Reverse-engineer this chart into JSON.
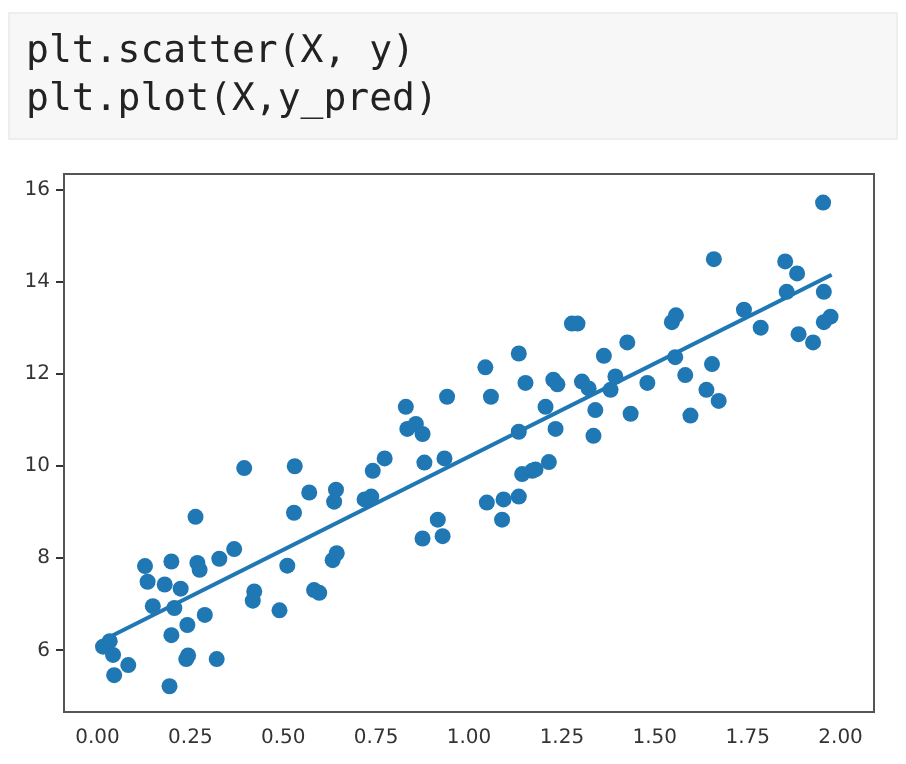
{
  "chart_data": {
    "type": "scatter",
    "annotations": [
      "plt.scatter(X, y)",
      "plt.plot(X,y_pred)"
    ],
    "xlim": [
      -0.09,
      2.09
    ],
    "ylim": [
      4.66,
      16.35
    ],
    "xticks": [
      {
        "value": 0,
        "label": "0.00"
      },
      {
        "value": 0.25,
        "label": "0.25"
      },
      {
        "value": 0.5,
        "label": "0.50"
      },
      {
        "value": 0.75,
        "label": "0.75"
      },
      {
        "value": 1,
        "label": "1.00"
      },
      {
        "value": 1.25,
        "label": "1.25"
      },
      {
        "value": 1.5,
        "label": "1.50"
      },
      {
        "value": 1.75,
        "label": "1.75"
      },
      {
        "value": 2,
        "label": "2.00"
      }
    ],
    "yticks": [
      6,
      8,
      10,
      12,
      14,
      16
    ],
    "grid": false,
    "legend": false,
    "marker": "circle",
    "series": [
      {
        "type": "scatter",
        "color": "#1f77b4",
        "x": [
          0.015,
          0.033,
          0.042,
          0.045,
          0.083,
          0.128,
          0.135,
          0.149,
          0.181,
          0.199,
          0.224,
          0.207,
          0.199,
          0.194,
          0.242,
          0.244,
          0.239,
          0.264,
          0.269,
          0.275,
          0.289,
          0.321,
          0.328,
          0.368,
          0.395,
          0.422,
          0.418,
          0.49,
          0.511,
          0.529,
          0.531,
          0.57,
          0.633,
          0.642,
          0.637,
          0.644,
          0.583,
          0.597,
          0.719,
          0.737,
          0.741,
          0.773,
          0.88,
          0.875,
          0.929,
          0.916,
          0.934,
          0.83,
          0.834,
          0.857,
          0.875,
          0.941,
          1.044,
          1.059,
          1.134,
          1.152,
          1.134,
          1.206,
          1.227,
          1.238,
          1.233,
          1.277,
          1.292,
          1.304,
          1.322,
          1.34,
          1.335,
          1.363,
          1.381,
          1.394,
          1.426,
          1.435,
          1.48,
          1.546,
          1.557,
          1.555,
          1.582,
          1.596,
          1.639,
          1.654,
          1.672,
          1.659,
          1.74,
          1.785,
          1.851,
          1.883,
          1.855,
          1.887,
          1.926,
          1.955,
          1.955,
          1.973,
          1.953,
          1.048,
          1.093,
          1.089,
          1.134,
          1.143,
          1.17,
          1.179,
          1.215
        ],
        "values": [
          6.08,
          6.2,
          5.9,
          5.46,
          5.68,
          7.83,
          7.49,
          6.96,
          7.43,
          7.93,
          7.34,
          6.92,
          6.33,
          5.22,
          6.55,
          5.89,
          5.81,
          8.9,
          7.9,
          7.75,
          6.77,
          5.81,
          7.99,
          8.2,
          9.96,
          7.28,
          7.08,
          6.87,
          7.84,
          8.99,
          10.0,
          9.43,
          7.96,
          9.49,
          9.23,
          8.11,
          7.31,
          7.25,
          9.28,
          9.34,
          9.9,
          10.17,
          10.08,
          8.43,
          8.48,
          8.84,
          10.17,
          11.29,
          10.81,
          10.92,
          10.7,
          11.51,
          12.15,
          11.51,
          12.45,
          11.81,
          10.75,
          11.29,
          11.88,
          11.78,
          10.81,
          13.1,
          13.1,
          11.84,
          11.69,
          11.22,
          10.66,
          12.4,
          11.66,
          11.95,
          12.69,
          11.14,
          11.81,
          13.13,
          13.28,
          12.37,
          11.98,
          11.1,
          11.66,
          12.22,
          11.42,
          14.5,
          13.4,
          13.01,
          14.45,
          14.19,
          13.79,
          12.87,
          12.69,
          13.79,
          13.13,
          13.25,
          15.73,
          9.21,
          9.28,
          8.84,
          9.34,
          9.83,
          9.9,
          9.93,
          10.09
        ]
      },
      {
        "type": "line",
        "color": "#1f77b4",
        "marker": "none",
        "x": [
          0.015,
          1.976
        ],
        "values": [
          6.22,
          14.16
        ]
      }
    ]
  }
}
